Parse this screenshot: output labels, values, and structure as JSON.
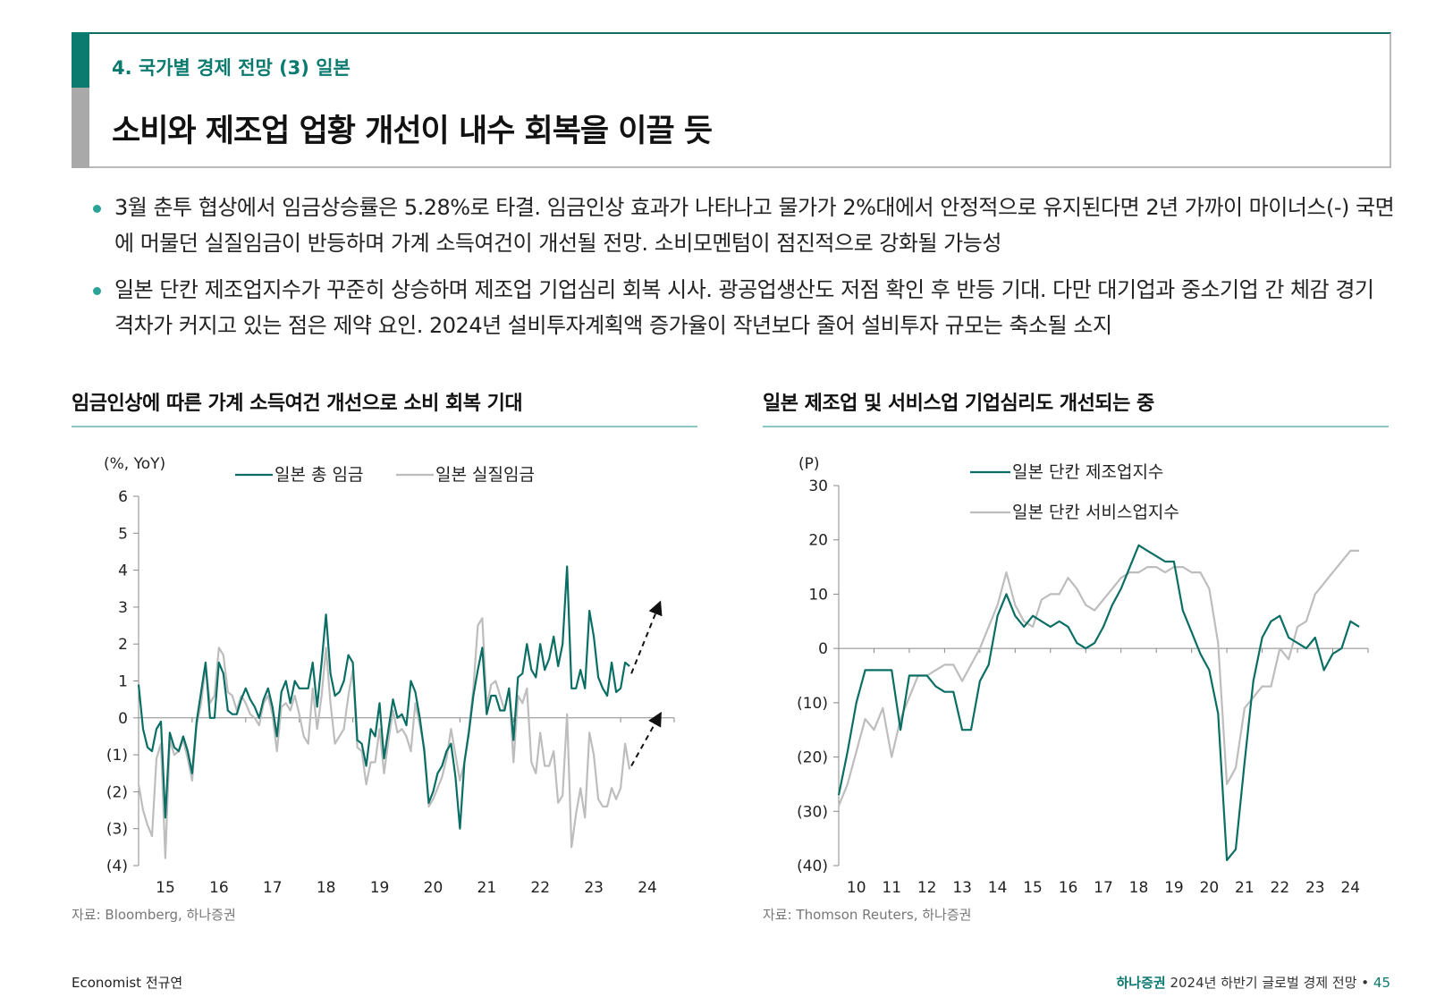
{
  "header": {
    "section": "4. 국가별 경제 전망 (3) 일본",
    "title": "소비와 제조업 업황 개선이 내수 회복을 이끌 듯"
  },
  "bullets": [
    "3월 춘투 협상에서 임금상승률은 5.28%로 타결. 임금인상 효과가 나타나고 물가가 2%대에서 안정적으로 유지된다면 2년 가까이 마이너스(-) 국면에 머물던 실질임금이 반등하며 가계 소득여건이 개선될 전망. 소비모멘텀이 점진적으로 강화될 가능성",
    "일본 단칸 제조업지수가 꾸준히 상승하며 제조업 기업심리 회복 시사. 광공업생산도 저점 확인 후 반등 기대. 다만 대기업과 중소기업 간 체감 경기 격차가 커지고 있는 점은 제약 요인. 2024년 설비투자계획액 증가율이 작년보다 줄어 설비투자 규모는 축소될 소지"
  ],
  "chart_left": {
    "heading": "임금인상에 따른 가계 소득여건 개선으로 소비 회복 기대",
    "source": "자료: Bloomberg, 하나증권"
  },
  "chart_right": {
    "heading": "일본 제조업 및 서비스업 기업심리도 개선되는 중",
    "source": "자료: Thomson Reuters, 하나증권"
  },
  "footer": {
    "author": "Economist 전규연",
    "brand": "하나증권",
    "pub": " 2024년 하반기 글로벌 경제 전망",
    "sep": " • ",
    "page": "45"
  },
  "colors": {
    "teal": "#0b6e64",
    "gray": "#bdbdbd",
    "accent": "#0b7a6f"
  },
  "chart_data": [
    {
      "type": "line",
      "unit_label": "(%, YoY)",
      "x_ticks": [
        "15",
        "16",
        "17",
        "18",
        "19",
        "20",
        "21",
        "22",
        "23",
        "24"
      ],
      "x_range": [
        2015.0,
        2025.0
      ],
      "y_ticks": [
        "6",
        "5",
        "4",
        "3",
        "2",
        "1",
        "0",
        "(1)",
        "(2)",
        "(3)",
        "(4)"
      ],
      "ylim": [
        -4,
        6
      ],
      "annotations": "two dashed upward arrows at the end of each series",
      "series": [
        {
          "name": "일본 총 임금",
          "color": "#0b6e64",
          "start": 2015.0,
          "step": 0.0833333,
          "values": [
            0.9,
            -0.3,
            -0.8,
            -0.9,
            -0.3,
            -0.1,
            -2.7,
            -0.4,
            -0.8,
            -0.9,
            -0.5,
            -0.9,
            -1.5,
            -0.1,
            0.7,
            1.5,
            0.0,
            0.0,
            1.5,
            1.2,
            0.2,
            0.1,
            0.1,
            0.5,
            0.8,
            0.5,
            0.3,
            0.0,
            0.5,
            0.8,
            0.3,
            -0.5,
            0.7,
            1.0,
            0.4,
            1.0,
            0.8,
            0.8,
            0.8,
            1.5,
            0.3,
            1.5,
            2.8,
            1.2,
            0.6,
            0.7,
            1.0,
            1.7,
            1.5,
            -0.6,
            -0.7,
            -1.3,
            -0.3,
            -0.5,
            0.4,
            -1.1,
            -0.3,
            0.5,
            0.0,
            0.1,
            -0.2,
            1.0,
            0.7,
            0.0,
            -0.9,
            -2.3,
            -2.0,
            -1.5,
            -1.3,
            -0.9,
            -0.7,
            -1.6,
            -3.0,
            -1.2,
            -0.4,
            0.6,
            1.3,
            1.9,
            0.1,
            0.6,
            0.6,
            0.2,
            0.2,
            0.8,
            -0.6,
            1.1,
            1.2,
            2.0,
            1.3,
            1.1,
            2.0,
            1.3,
            1.6,
            2.2,
            1.4,
            2.0,
            4.1,
            0.8,
            0.8,
            1.3,
            0.8,
            2.9,
            2.2,
            1.1,
            0.8,
            0.6,
            1.5,
            0.7,
            0.8,
            1.5,
            1.4
          ]
        },
        {
          "name": "일본 실질임금",
          "color": "#bdbdbd",
          "start": 2015.0,
          "step": 0.0833333,
          "values": [
            -1.8,
            -2.5,
            -2.9,
            -3.2,
            -1.1,
            -0.7,
            -3.8,
            -0.6,
            -1.0,
            -0.9,
            -0.6,
            -1.1,
            -1.7,
            -0.2,
            0.4,
            1.4,
            0.4,
            0.6,
            1.9,
            1.7,
            0.7,
            0.6,
            0.2,
            0.6,
            0.4,
            0.1,
            0.0,
            -0.2,
            0.4,
            0.6,
            0.1,
            -0.9,
            0.3,
            0.4,
            0.2,
            0.6,
            0.1,
            -0.5,
            -0.7,
            0.8,
            -0.3,
            0.6,
            1.9,
            0.4,
            -0.7,
            -0.5,
            -0.3,
            0.6,
            1.3,
            -0.8,
            -0.9,
            -1.8,
            -1.2,
            -1.2,
            -0.3,
            -1.5,
            -0.6,
            0.2,
            -0.4,
            -0.3,
            -0.5,
            -0.9,
            0.4,
            -0.2,
            -0.8,
            -2.4,
            -2.2,
            -1.9,
            -1.6,
            -1.1,
            -0.3,
            -1.0,
            -1.7,
            -1.2,
            -0.3,
            0.8,
            2.5,
            2.7,
            0.3,
            0.9,
            1.0,
            0.6,
            0.2,
            0.8,
            -1.2,
            0.6,
            0.4,
            0.8,
            -1.2,
            -1.5,
            -0.4,
            -1.3,
            -1.3,
            -0.9,
            -2.3,
            -2.1,
            0.1,
            -3.5,
            -2.6,
            -1.9,
            -2.7,
            -0.4,
            -1.0,
            -2.2,
            -2.4,
            -2.4,
            -1.9,
            -2.2,
            -1.9,
            -0.7,
            -1.4
          ]
        }
      ]
    },
    {
      "type": "line",
      "unit_label": "(P)",
      "x_ticks": [
        "10",
        "11",
        "12",
        "13",
        "14",
        "15",
        "16",
        "17",
        "18",
        "19",
        "20",
        "21",
        "22",
        "23",
        "24"
      ],
      "x_range": [
        2010.0,
        2025.0
      ],
      "y_ticks": [
        "30",
        "20",
        "10",
        "0",
        "(10)",
        "(20)",
        "(30)",
        "(40)"
      ],
      "ylim": [
        -40,
        30
      ],
      "series": [
        {
          "name": "일본 단칸 제조업지수",
          "color": "#0b6e64",
          "start": 2010.0,
          "step": 0.25,
          "values": [
            -27,
            -19,
            -10,
            -4,
            -4,
            -4,
            -4,
            -15,
            -5,
            -5,
            -5,
            -7,
            -8,
            -8,
            -15,
            -15,
            -6,
            -3,
            6,
            10,
            6,
            4,
            6,
            5,
            4,
            5,
            4,
            1,
            0,
            1,
            4,
            8,
            11,
            15,
            19,
            18,
            17,
            16,
            16,
            7,
            3,
            -1,
            -4,
            -12,
            -39,
            -37,
            -21,
            -6,
            2,
            5,
            6,
            2,
            1,
            0,
            2,
            -4,
            -1,
            0,
            5,
            4
          ]
        },
        {
          "name": "일본 단칸 서비스업지수",
          "color": "#bdbdbd",
          "start": 2010.0,
          "step": 0.25,
          "values": [
            -29,
            -25,
            -19,
            -13,
            -15,
            -11,
            -20,
            -13,
            -9,
            -5,
            -5,
            -4,
            -3,
            -3,
            -6,
            -3,
            0,
            4,
            8,
            14,
            8,
            5,
            4,
            9,
            10,
            10,
            13,
            11,
            8,
            7,
            9,
            11,
            13,
            14,
            14,
            15,
            15,
            14,
            15,
            15,
            14,
            14,
            11,
            1,
            -25,
            -22,
            -11,
            -9,
            -7,
            -7,
            0,
            -2,
            4,
            5,
            10,
            12,
            14,
            16,
            18,
            18
          ]
        }
      ]
    }
  ]
}
